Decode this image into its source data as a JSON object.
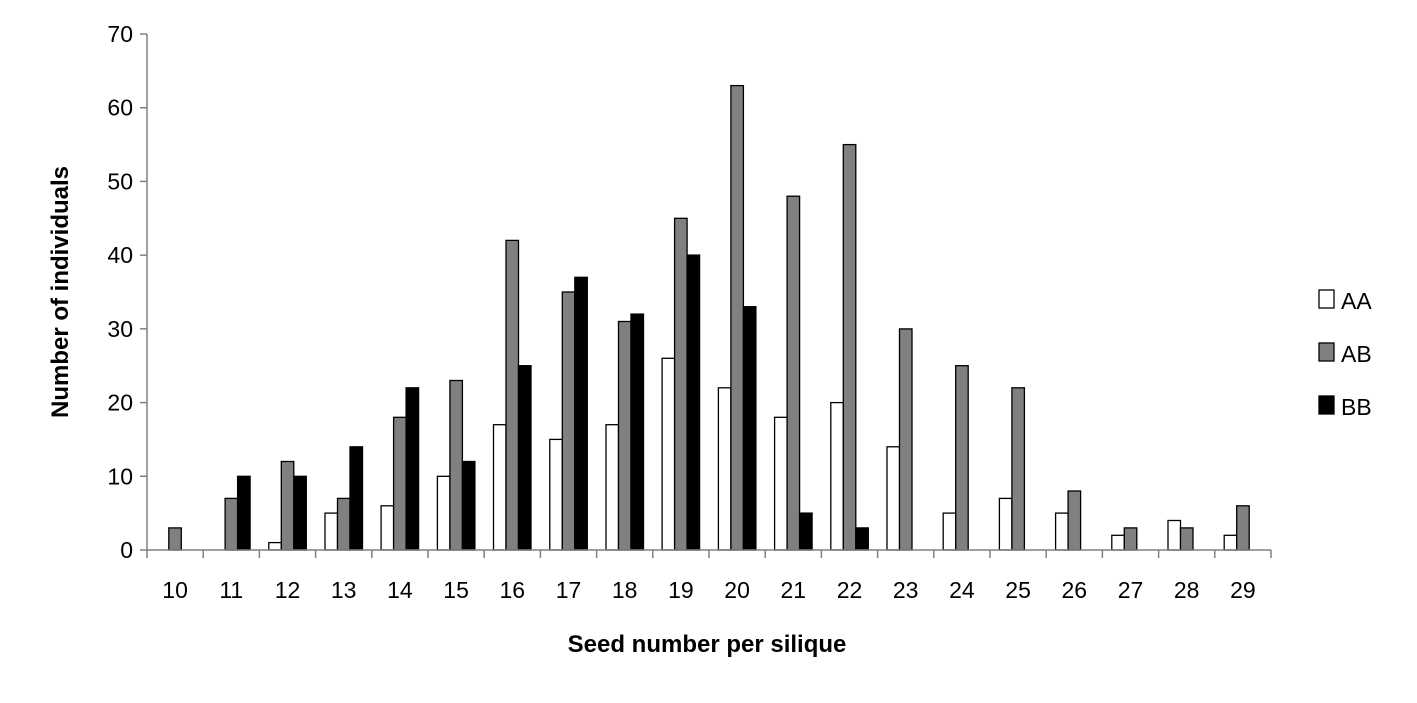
{
  "chart_data": {
    "type": "bar",
    "title": "",
    "xlabel": "Seed number per silique",
    "ylabel": "Number of individuals",
    "categories": [
      "10",
      "11",
      "12",
      "13",
      "14",
      "15",
      "16",
      "17",
      "18",
      "19",
      "20",
      "21",
      "22",
      "23",
      "24",
      "25",
      "26",
      "27",
      "28",
      "29"
    ],
    "ylim": [
      0,
      70
    ],
    "yticks": [
      0,
      10,
      20,
      30,
      40,
      50,
      60,
      70
    ],
    "grid": false,
    "legend_position": "right",
    "series": [
      {
        "name": "AA",
        "color": "#ffffff",
        "values": [
          0,
          0,
          1,
          5,
          6,
          10,
          17,
          15,
          17,
          26,
          22,
          18,
          20,
          14,
          5,
          7,
          5,
          2,
          4,
          2
        ]
      },
      {
        "name": "AB",
        "color": "#808080",
        "values": [
          3,
          7,
          12,
          7,
          18,
          23,
          42,
          35,
          31,
          45,
          63,
          48,
          55,
          30,
          25,
          22,
          8,
          3,
          3,
          6
        ]
      },
      {
        "name": "BB",
        "color": "#000000",
        "values": [
          0,
          10,
          10,
          14,
          22,
          12,
          25,
          37,
          32,
          40,
          33,
          5,
          3,
          0,
          0,
          0,
          0,
          0,
          0,
          0
        ]
      }
    ]
  }
}
